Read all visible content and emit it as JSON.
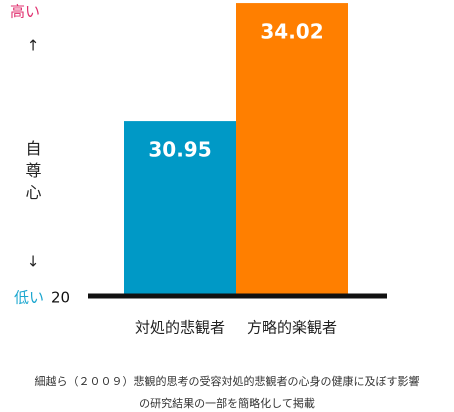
{
  "chart_data": {
    "type": "bar",
    "categories": [
      "対処的悲観者",
      "方略的楽観者"
    ],
    "values": [
      30.95,
      34.02
    ],
    "colors": [
      "#0099c6",
      "#ff7f00"
    ],
    "ylim": [
      26.4,
      34.1
    ],
    "y_high_label": "高い",
    "up_arrow": "↑",
    "y_label": "自尊心",
    "down_arrow": "↓",
    "y_low_label": "低い",
    "y_bottom_label": "20"
  },
  "caption": {
    "line1": "細越ら（２００９）悲観的思考の受容対処的悲観者の心身の健康に及ぼす影響",
    "line2": "の研究結果の一部を簡略化して掲載"
  }
}
